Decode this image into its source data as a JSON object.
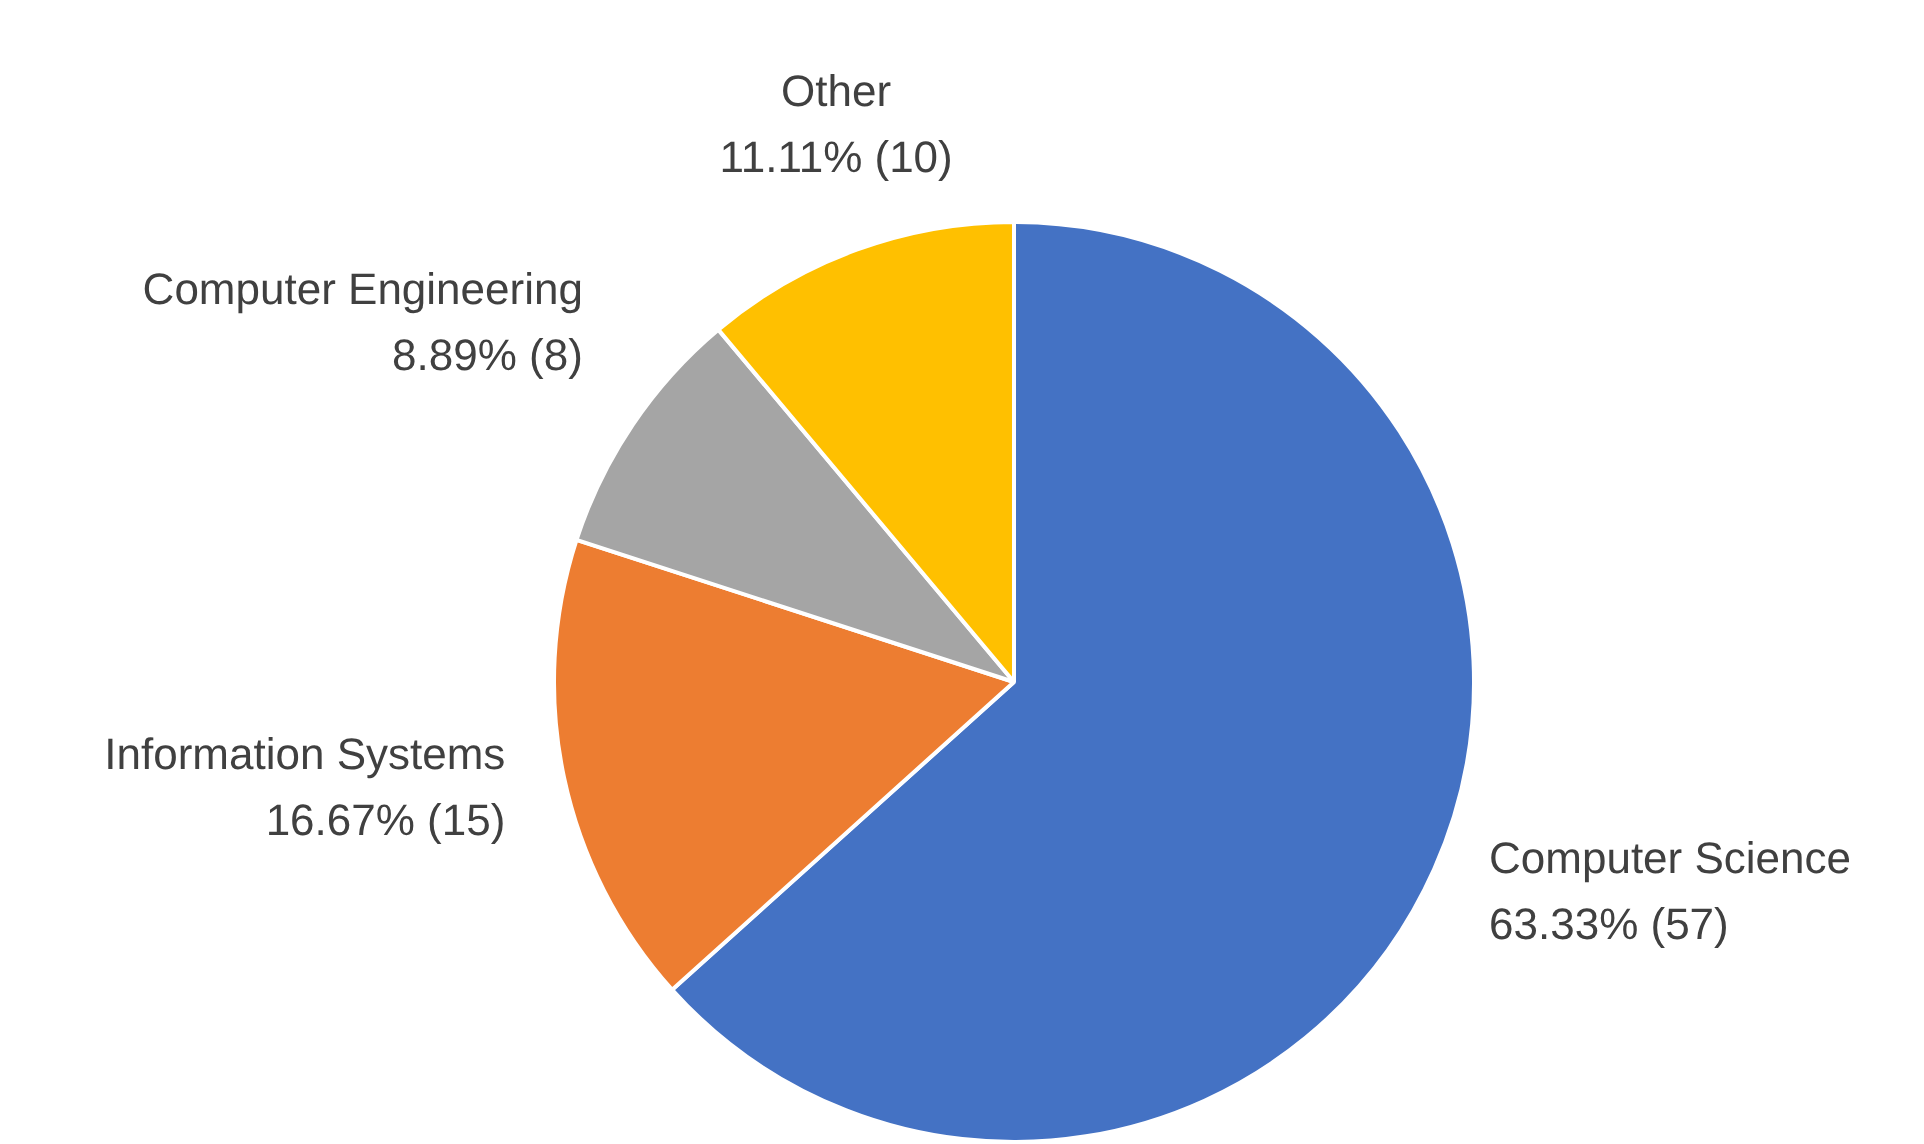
{
  "chart_data": {
    "type": "pie",
    "categories": [
      "Computer Science",
      "Information Systems",
      "Computer Engineering",
      "Other"
    ],
    "values": [
      57,
      15,
      8,
      10
    ],
    "colors": [
      "#4472c4",
      "#ed7d31",
      "#a5a5a5",
      "#ffc000"
    ],
    "value_labels": [
      "63.33% (57)",
      "16.67% (15)",
      "8.89% (8)",
      "11.11% (10)"
    ],
    "legend": false
  }
}
